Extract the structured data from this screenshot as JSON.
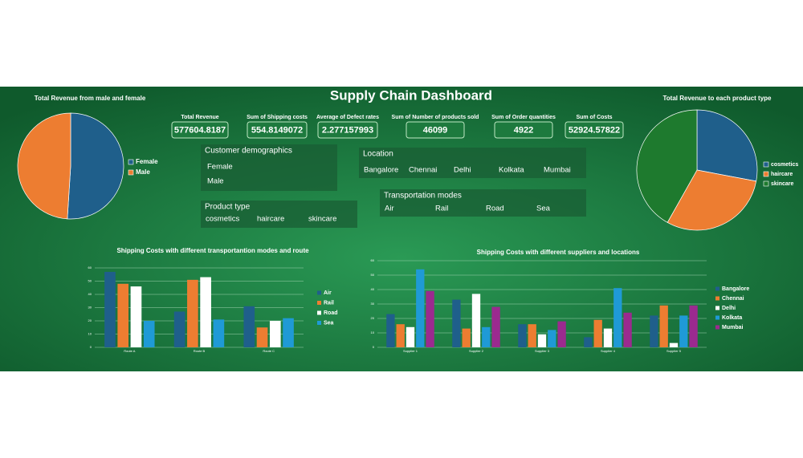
{
  "title": "Supply Chain Dashboard",
  "kpis": [
    {
      "label": "Total Revenue",
      "value": "577604.8187"
    },
    {
      "label": "Sum of Shipping costs",
      "value": "554.8149072"
    },
    {
      "label": "Average of Defect rates",
      "value": "2.277157993"
    },
    {
      "label": "Sum of Number of products sold",
      "value": "46099"
    },
    {
      "label": "Sum of Order quantities",
      "value": "4922"
    },
    {
      "label": "Sum of Costs",
      "value": "52924.57822"
    }
  ],
  "slicers": [
    {
      "header": "Customer demographics",
      "items": [
        "Female",
        "Male"
      ]
    },
    {
      "header": "Location",
      "items": [
        "Bangalore",
        "Chennai",
        "Delhi",
        "Kolkata",
        "Mumbai"
      ]
    },
    {
      "header": "Product type",
      "items": [
        "cosmetics",
        "haircare",
        "skincare"
      ]
    },
    {
      "header": "Transportation modes",
      "items": [
        "Air",
        "Rail",
        "Road",
        "Sea"
      ]
    }
  ],
  "chart_data": [
    {
      "type": "pie",
      "title": "Total Revenue from male and female",
      "categories": [
        "Female",
        "Male"
      ],
      "values": [
        51,
        49
      ],
      "colors": [
        "#1f5f8b",
        "#ed7d31"
      ],
      "legend": "right"
    },
    {
      "type": "pie",
      "title": "Total Revenue to each product type",
      "categories": [
        "cosmetics",
        "haircare",
        "skincare"
      ],
      "values": [
        161521.27,
        174455.39,
        241628.16
      ],
      "colors": [
        "#1f5f8b",
        "#ed7d31",
        "#1e7a2e"
      ],
      "legend": "right"
    },
    {
      "type": "bar",
      "title": "Shipping Costs with different transportantion modes and route",
      "categories": [
        "Route A",
        "Route B",
        "Route C"
      ],
      "series": [
        {
          "name": "Air",
          "color": "#1f5f8b",
          "values": [
            57,
            27,
            31
          ]
        },
        {
          "name": "Rail",
          "color": "#ed7d31",
          "values": [
            48,
            51,
            15
          ]
        },
        {
          "name": "Road",
          "color": "#ffffff",
          "values": [
            46,
            53,
            20
          ]
        },
        {
          "name": "Sea",
          "color": "#1f9ad6",
          "values": [
            20,
            21,
            22
          ]
        }
      ],
      "ylim": [
        0,
        60
      ],
      "yticks": [
        0,
        10,
        20,
        30,
        40,
        50,
        60
      ],
      "grid": true,
      "legend": "right"
    },
    {
      "type": "bar",
      "title": "Shipping Costs with different suppliers and locations",
      "categories": [
        "Supplier 1",
        "Supplier 2",
        "Supplier 3",
        "Supplier 4",
        "Supplier 5"
      ],
      "series": [
        {
          "name": "Bangalore",
          "color": "#1f5f8b",
          "values": [
            23,
            33,
            16,
            7,
            22
          ]
        },
        {
          "name": "Chennai",
          "color": "#ed7d31",
          "values": [
            16,
            13,
            16,
            19,
            29
          ]
        },
        {
          "name": "Delhi",
          "color": "#ffffff",
          "values": [
            14,
            37,
            9,
            13,
            3
          ]
        },
        {
          "name": "Kolkata",
          "color": "#1f9ad6",
          "values": [
            54,
            14,
            12,
            41,
            22
          ]
        },
        {
          "name": "Mumbai",
          "color": "#9b2a8f",
          "values": [
            39,
            28,
            18,
            24,
            29
          ]
        }
      ],
      "ylim": [
        0,
        60
      ],
      "yticks": [
        0,
        10,
        20,
        30,
        40,
        50,
        60
      ],
      "grid": true,
      "legend": "right"
    }
  ]
}
